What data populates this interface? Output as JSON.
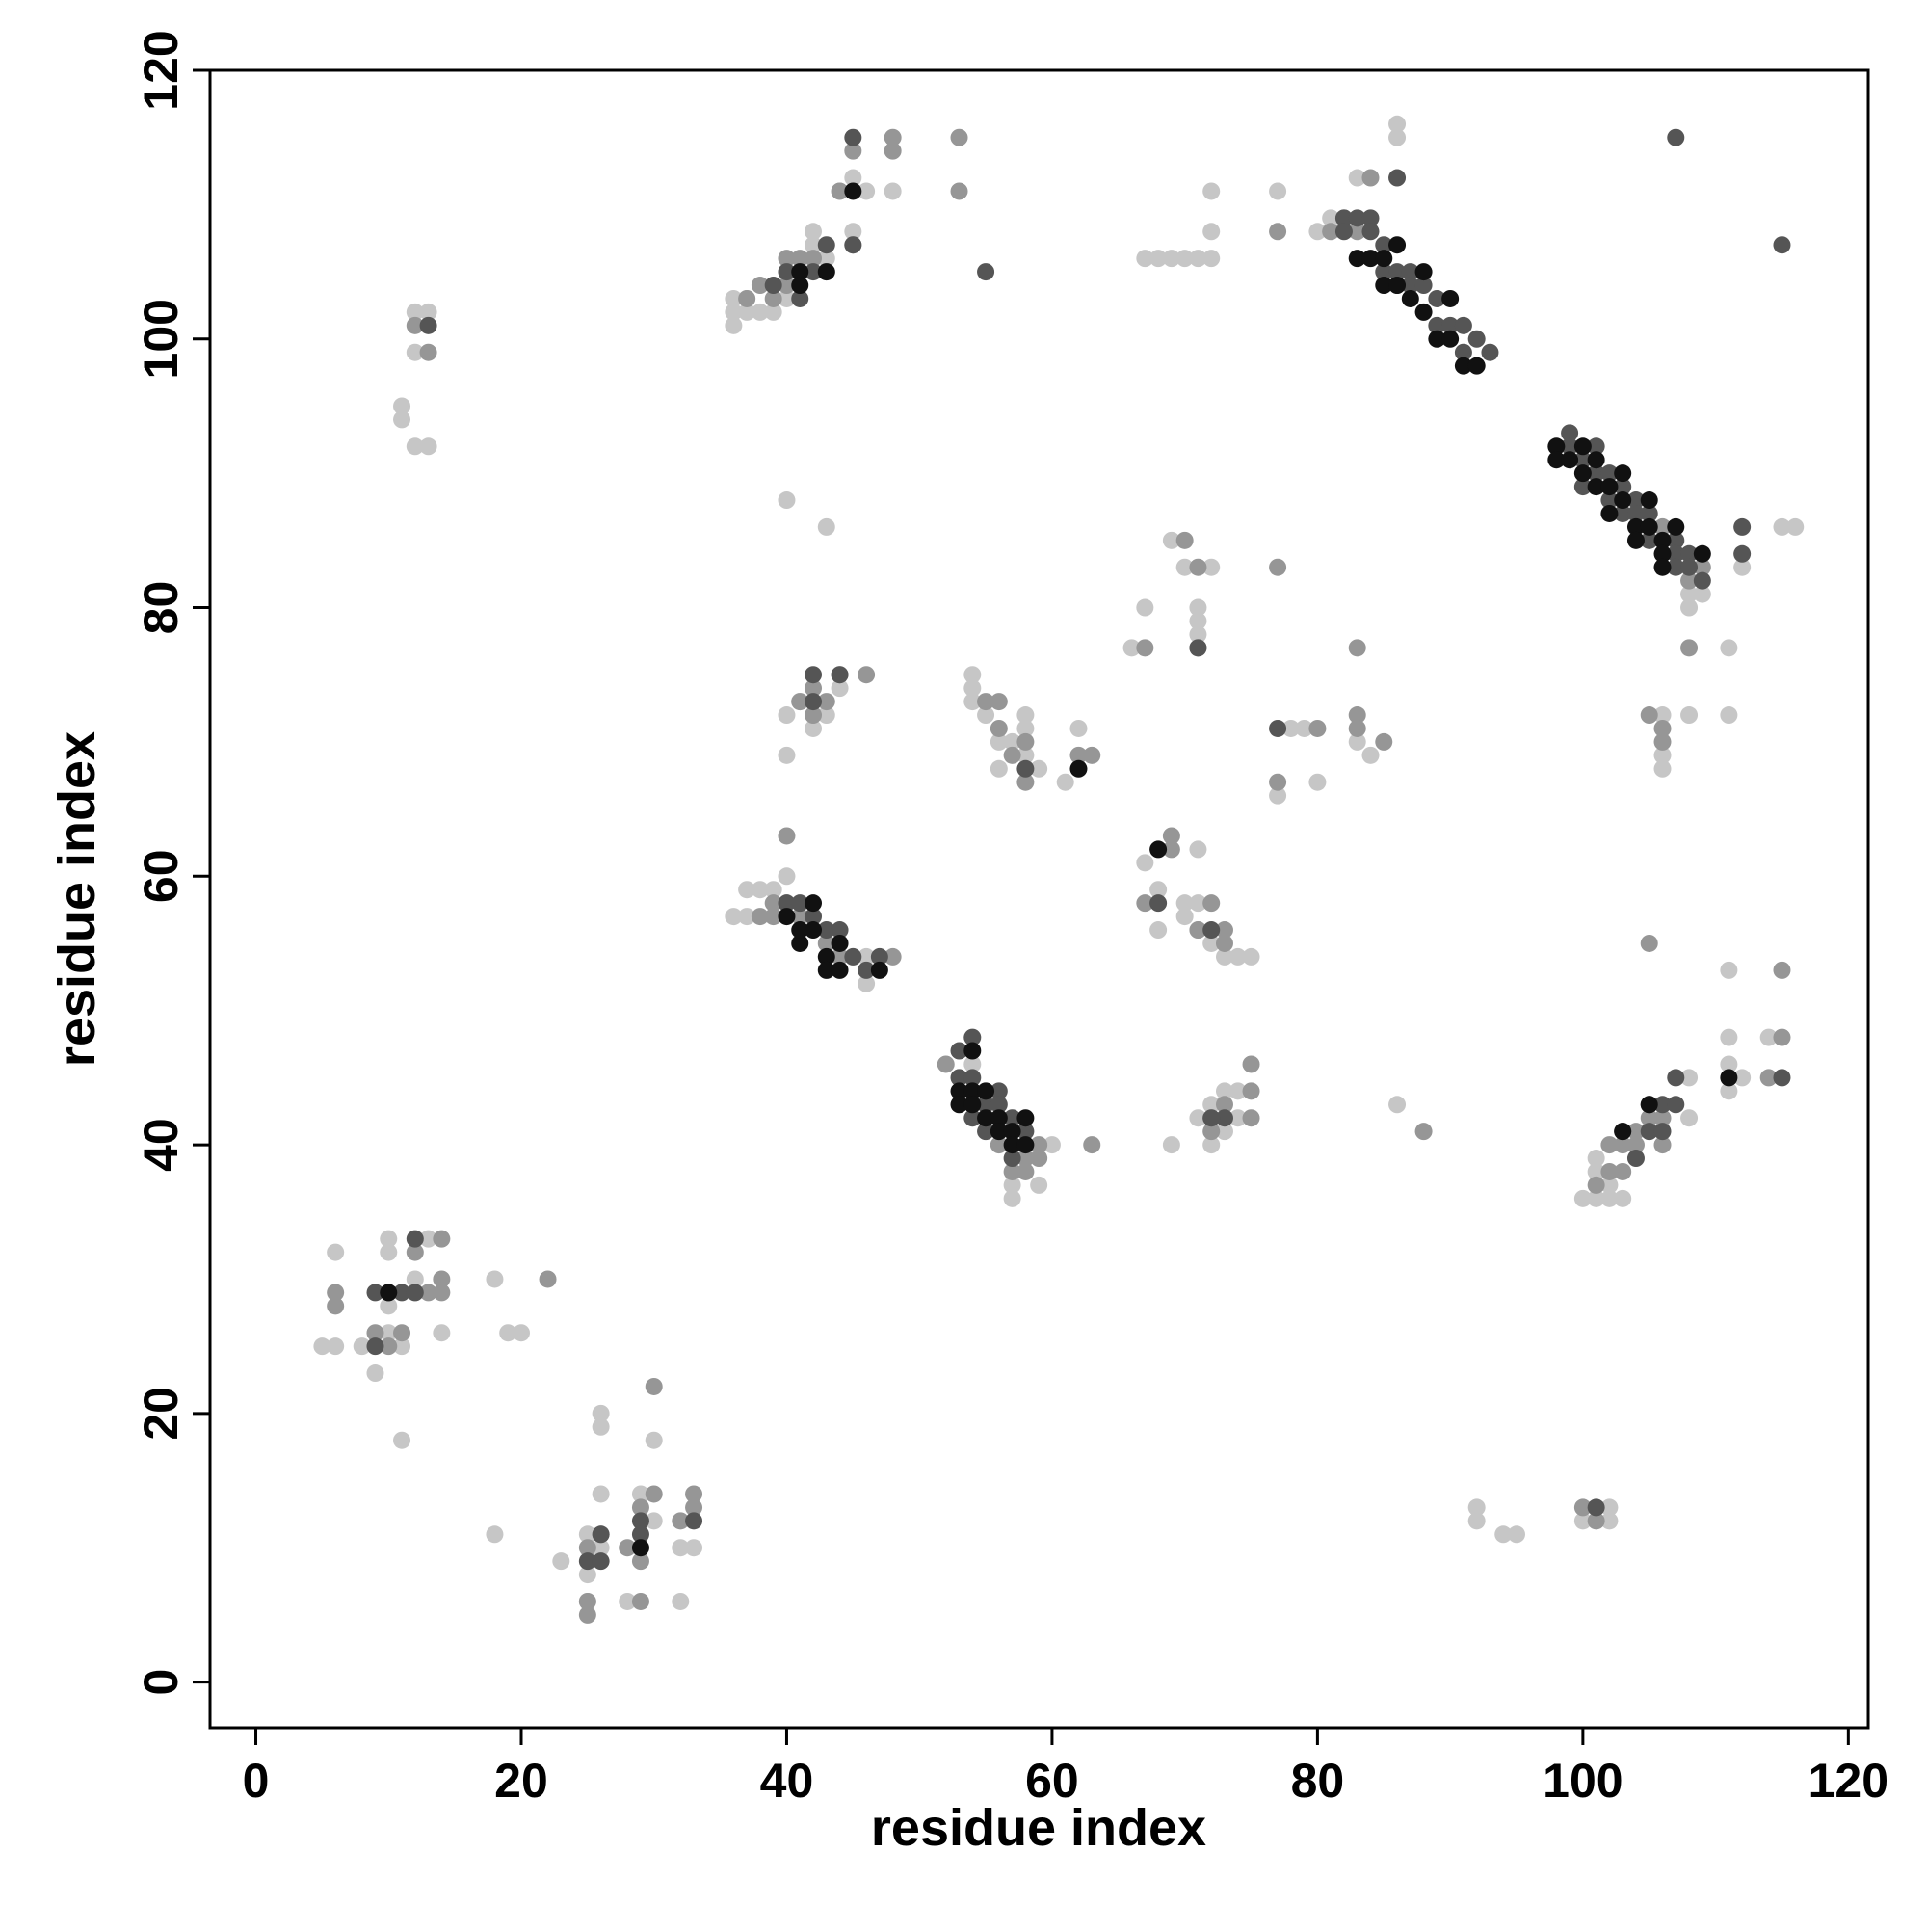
{
  "chart_data": {
    "type": "scatter",
    "x_label": "residue index",
    "y_label": "residue index",
    "xlim": [
      -3.45,
      121.5
    ],
    "ylim": [
      -3.4,
      120
    ],
    "xticks": [
      0,
      20,
      40,
      60,
      80,
      100,
      120
    ],
    "yticks": [
      0,
      20,
      40,
      60,
      80,
      100,
      120
    ],
    "series": [
      {
        "color": "#c6c6c6",
        "x": [
          5,
          6,
          6,
          8,
          9,
          10,
          10,
          10,
          11,
          11,
          12,
          12,
          13,
          14,
          18,
          19,
          20,
          10,
          23,
          25,
          25,
          26,
          26,
          26,
          26,
          29,
          30,
          30,
          32,
          33,
          32,
          28,
          18,
          25,
          11,
          11,
          12,
          13,
          12,
          12,
          13,
          36,
          36,
          36,
          37,
          37,
          38,
          39,
          42,
          42,
          43,
          44,
          45,
          45,
          46,
          48,
          40,
          67,
          68,
          69,
          70,
          71,
          72,
          72,
          72,
          77,
          80,
          81,
          86,
          86,
          83,
          108,
          108,
          109,
          112,
          115,
          116,
          111,
          111,
          108,
          40,
          43,
          40,
          40,
          41,
          42,
          43,
          44,
          54,
          54,
          54,
          55,
          56,
          56,
          57,
          58,
          58,
          58,
          59,
          61,
          62,
          66,
          67,
          69,
          70,
          71,
          71,
          71,
          72,
          77,
          78,
          79,
          80,
          83,
          84,
          106,
          106,
          106,
          36,
          37,
          37,
          38,
          39,
          40,
          40,
          45,
          46,
          46,
          68,
          68,
          67,
          70,
          71,
          71,
          72,
          73,
          74,
          75,
          70,
          71,
          57,
          57,
          59,
          60,
          54,
          57,
          69,
          71,
          72,
          72,
          73,
          73,
          74,
          74,
          86,
          100,
          101,
          101,
          101,
          102,
          102,
          103,
          108,
          108,
          111,
          111,
          111,
          111,
          112,
          114,
          92,
          92,
          94,
          95,
          100,
          102,
          102
        ],
        "y": [
          25,
          25,
          32,
          25,
          23,
          33,
          32,
          28,
          25,
          18,
          29,
          30,
          33,
          26,
          30,
          26,
          26,
          26,
          9,
          11,
          8,
          20,
          19,
          14,
          10,
          14,
          18,
          12,
          10,
          10,
          6,
          6,
          11,
          6,
          95,
          94,
          102,
          102,
          99,
          92,
          92,
          101,
          102,
          103,
          103,
          102,
          102,
          102,
          108,
          107,
          106,
          111,
          112,
          108,
          111,
          111,
          103,
          106,
          106,
          106,
          106,
          106,
          106,
          108,
          111,
          111,
          108,
          109,
          116,
          115,
          112,
          81,
          80,
          81,
          83,
          86,
          86,
          77,
          72,
          72,
          88,
          86,
          72,
          69,
          73,
          71,
          72,
          74,
          75,
          74,
          73,
          72,
          70,
          68,
          70,
          72,
          71,
          69,
          68,
          67,
          71,
          77,
          80,
          85,
          83,
          80,
          79,
          78,
          83,
          66,
          71,
          71,
          67,
          70,
          69,
          68,
          69,
          72,
          57,
          57,
          59,
          59,
          59,
          60,
          58,
          54,
          54,
          52,
          56,
          59,
          61,
          57,
          62,
          56,
          55,
          54,
          54,
          54,
          58,
          58,
          37,
          36,
          37,
          40,
          46,
          40,
          40,
          42,
          43,
          40,
          41,
          44,
          44,
          42,
          43,
          36,
          39,
          38,
          36,
          37,
          36,
          36,
          42,
          45,
          53,
          48,
          46,
          44,
          45,
          48,
          13,
          12,
          11,
          11,
          12,
          13,
          12
        ]
      },
      {
        "color": "#969696",
        "x": [
          6,
          6,
          9,
          10,
          12,
          13,
          14,
          14,
          14,
          22,
          11,
          25,
          25,
          25,
          26,
          28,
          29,
          29,
          29,
          30,
          30,
          32,
          33,
          33,
          13,
          12,
          37,
          38,
          39,
          40,
          41,
          40,
          42,
          43,
          45,
          45,
          48,
          48,
          53,
          53,
          44,
          77,
          81,
          82,
          83,
          84,
          106,
          108,
          109,
          108,
          41,
          42,
          43,
          44,
          46,
          42,
          55,
          56,
          56,
          57,
          58,
          58,
          62,
          63,
          67,
          70,
          71,
          71,
          77,
          77,
          80,
          83,
          83,
          83,
          85,
          106,
          106,
          105,
          38,
          39,
          40,
          39,
          41,
          43,
          44,
          48,
          69,
          69,
          72,
          73,
          73,
          67,
          71,
          52,
          56,
          57,
          58,
          58,
          59,
          63,
          59,
          72,
          73,
          75,
          75,
          75,
          72,
          88,
          105,
          101,
          102,
          102,
          103,
          103,
          104,
          104,
          105,
          106,
          106,
          115,
          115,
          114,
          100,
          101
        ],
        "y": [
          29,
          28,
          26,
          25,
          32,
          29,
          30,
          33,
          29,
          30,
          26,
          10,
          5,
          6,
          11,
          10,
          13,
          9,
          6,
          22,
          14,
          12,
          13,
          14,
          99,
          101,
          103,
          104,
          103,
          104,
          106,
          106,
          106,
          105,
          114,
          107,
          114,
          115,
          115,
          111,
          111,
          108,
          108,
          109,
          108,
          112,
          86,
          82,
          83,
          77,
          73,
          74,
          73,
          75,
          75,
          72,
          73,
          73,
          71,
          69,
          70,
          67,
          69,
          69,
          77,
          85,
          83,
          77,
          83,
          67,
          71,
          77,
          72,
          71,
          70,
          70,
          71,
          72,
          57,
          57,
          63,
          58,
          57,
          55,
          54,
          54,
          63,
          62,
          58,
          56,
          55,
          58,
          56,
          46,
          40,
          38,
          38,
          39,
          39,
          40,
          40,
          41,
          43,
          46,
          44,
          42,
          42,
          41,
          55,
          37,
          38,
          40,
          40,
          38,
          40,
          41,
          42,
          40,
          42,
          53,
          48,
          45,
          13,
          12
        ]
      },
      {
        "color": "#555555",
        "x": [
          9,
          10,
          11,
          12,
          12,
          9,
          25,
          26,
          29,
          29,
          33,
          26,
          13,
          39,
          40,
          41,
          43,
          45,
          45,
          55,
          42,
          82,
          82,
          83,
          84,
          84,
          85,
          85,
          86,
          86,
          87,
          87,
          88,
          89,
          89,
          90,
          91,
          91,
          92,
          93,
          86,
          99,
          99,
          100,
          100,
          101,
          101,
          102,
          102,
          103,
          103,
          104,
          104,
          105,
          105,
          107,
          107,
          107,
          108,
          108,
          109,
          112,
          112,
          115,
          107,
          42,
          42,
          44,
          58,
          77,
          71,
          40,
          41,
          42,
          43,
          44,
          45,
          46,
          47,
          68,
          72,
          53,
          53,
          54,
          54,
          55,
          55,
          56,
          56,
          57,
          57,
          58,
          54,
          73,
          72,
          103,
          104,
          105,
          105,
          106,
          106,
          107,
          107,
          115,
          101
        ],
        "y": [
          29,
          29,
          29,
          33,
          29,
          25,
          9,
          9,
          12,
          11,
          12,
          11,
          101,
          104,
          105,
          103,
          107,
          115,
          107,
          105,
          105,
          109,
          108,
          109,
          109,
          108,
          107,
          105,
          105,
          104,
          105,
          104,
          104,
          103,
          101,
          101,
          101,
          99,
          100,
          99,
          112,
          93,
          92,
          91,
          89,
          92,
          90,
          90,
          88,
          89,
          87,
          88,
          87,
          87,
          85,
          85,
          84,
          83,
          84,
          83,
          82,
          86,
          84,
          107,
          115,
          73,
          75,
          75,
          68,
          71,
          77,
          58,
          58,
          57,
          56,
          56,
          54,
          53,
          54,
          58,
          56,
          47,
          45,
          45,
          42,
          43,
          41,
          44,
          43,
          42,
          39,
          41,
          48,
          42,
          42,
          41,
          39,
          43,
          41,
          41,
          43,
          43,
          45,
          45,
          13
        ]
      },
      {
        "color": "#111111",
        "x": [
          10,
          29,
          41,
          43,
          45,
          41,
          83,
          84,
          85,
          86,
          87,
          88,
          89,
          90,
          91,
          92,
          88,
          85,
          86,
          90,
          98,
          98,
          99,
          100,
          100,
          101,
          101,
          102,
          102,
          103,
          103,
          104,
          104,
          105,
          105,
          106,
          106,
          107,
          106,
          109,
          62,
          40,
          41,
          41,
          42,
          42,
          43,
          43,
          44,
          44,
          47,
          68,
          53,
          53,
          54,
          54,
          55,
          55,
          56,
          56,
          57,
          57,
          58,
          58,
          54,
          103,
          105,
          111
        ],
        "y": [
          29,
          10,
          105,
          105,
          111,
          104,
          106,
          106,
          104,
          104,
          103,
          102,
          100,
          100,
          98,
          98,
          105,
          106,
          107,
          103,
          92,
          91,
          91,
          92,
          90,
          91,
          89,
          89,
          87,
          90,
          88,
          86,
          85,
          88,
          86,
          85,
          84,
          86,
          83,
          84,
          68,
          57,
          55,
          56,
          56,
          58,
          54,
          53,
          53,
          55,
          53,
          62,
          44,
          43,
          44,
          43,
          42,
          44,
          42,
          41,
          41,
          40,
          40,
          42,
          47,
          41,
          43,
          45
        ]
      }
    ]
  }
}
